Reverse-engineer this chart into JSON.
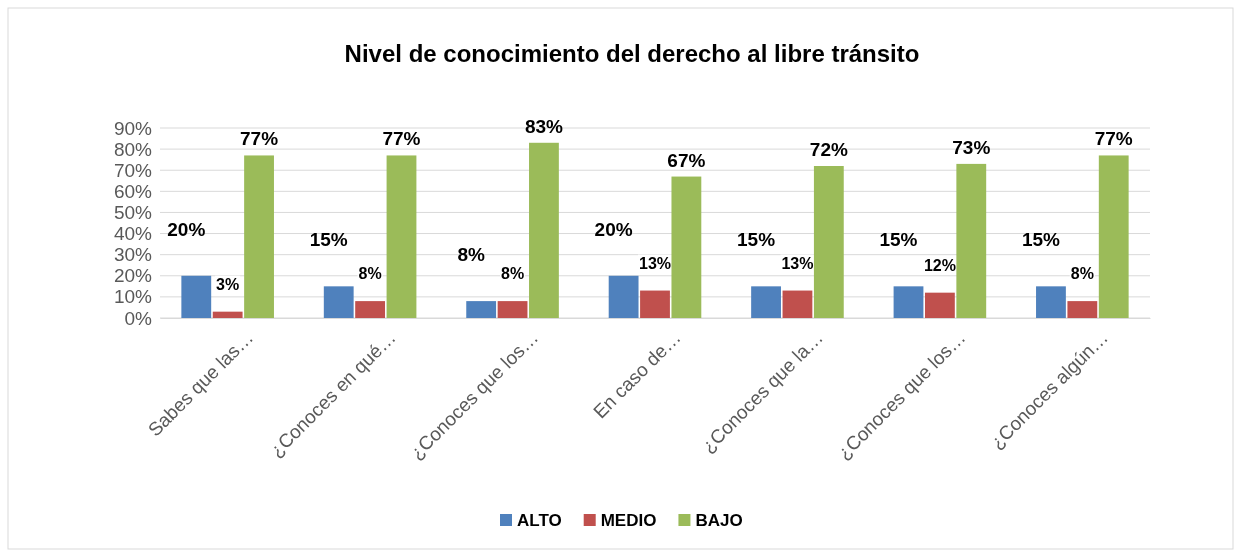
{
  "chart_data": {
    "type": "bar",
    "title": "Nivel de conocimiento del derecho al libre tránsito",
    "categories": [
      "Sabes que las…",
      "¿Conoces en qué…",
      "¿Conoces que los…",
      "En caso de…",
      "¿Conoces que la…",
      "¿Conoces que los…",
      "¿Conoces algún…"
    ],
    "series": [
      {
        "name": "ALTO",
        "color": "#4f81bd",
        "values": [
          20,
          15,
          8,
          20,
          15,
          15,
          15
        ],
        "value_labels": [
          "20%",
          "15%",
          "8%",
          "20%",
          "15%",
          "15%",
          "15%"
        ]
      },
      {
        "name": "MEDIO",
        "color": "#c0504d",
        "values": [
          3,
          8,
          8,
          13,
          13,
          12,
          8
        ],
        "value_labels": [
          "3%",
          "8%",
          "8%",
          "13%",
          "13%",
          "12%",
          "8%"
        ]
      },
      {
        "name": "BAJO",
        "color": "#9bbb59",
        "values": [
          77,
          77,
          83,
          67,
          72,
          73,
          77
        ],
        "value_labels": [
          "77%",
          "77%",
          "83%",
          "67%",
          "72%",
          "73%",
          "77%"
        ]
      }
    ],
    "ylim": [
      0,
      90
    ],
    "yticks": [
      {
        "value": 0,
        "label": "0%"
      },
      {
        "value": 10,
        "label": "10%"
      },
      {
        "value": 20,
        "label": "20%"
      },
      {
        "value": 30,
        "label": "30%"
      },
      {
        "value": 40,
        "label": "40%"
      },
      {
        "value": 50,
        "label": "50%"
      },
      {
        "value": 60,
        "label": "60%"
      },
      {
        "value": 70,
        "label": "70%"
      },
      {
        "value": 80,
        "label": "80%"
      },
      {
        "value": 90,
        "label": "90%"
      }
    ],
    "grid": "y",
    "legend": "bottom"
  }
}
